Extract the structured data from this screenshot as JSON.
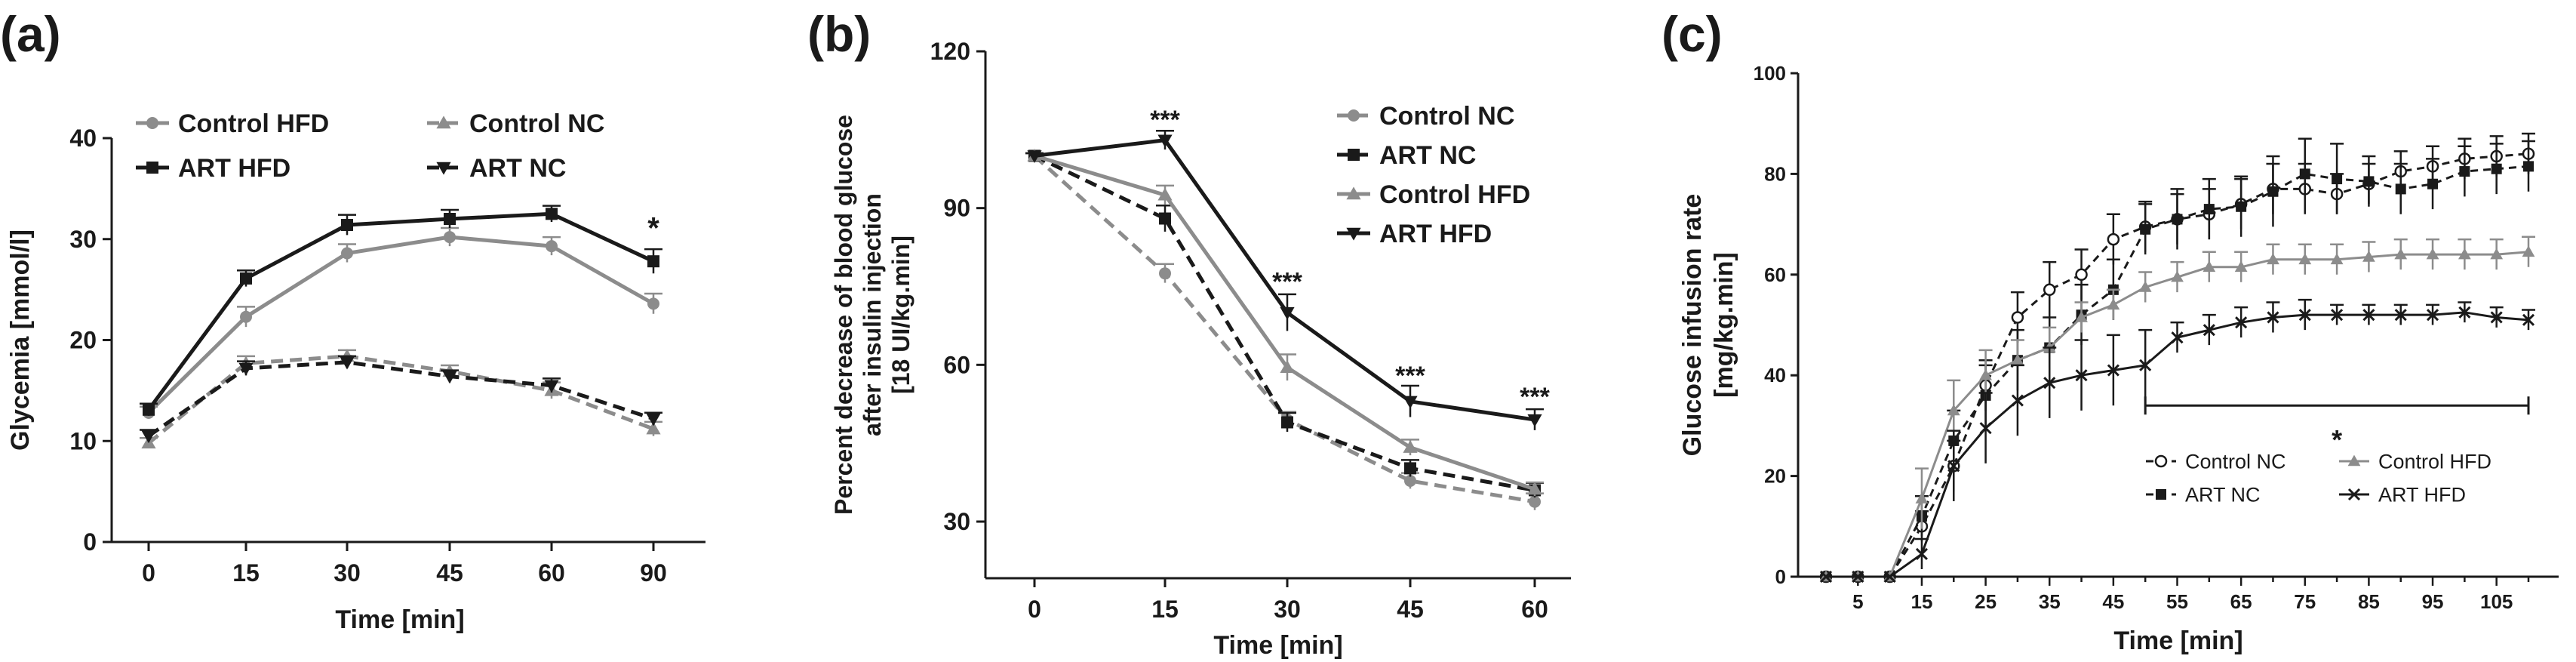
{
  "colors": {
    "black": "#1a1a1a",
    "gray": "#8c8c8c",
    "axis": "#1a1a1a"
  },
  "panels": [
    {
      "label": "(a)"
    },
    {
      "label": "(b)"
    },
    {
      "label": "(c)"
    }
  ],
  "chart_data": [
    {
      "panel": "(a)",
      "type": "line",
      "xlabel": "Time [min]",
      "ylabel": "Glycemia [mmol/l]",
      "x": [
        "0",
        "15",
        "30",
        "45",
        "60",
        "90"
      ],
      "yticks": [
        "0",
        "10",
        "20",
        "30",
        "40"
      ],
      "ylim": [
        0,
        40
      ],
      "legend": "top",
      "series": [
        {
          "name": "Control HFD",
          "color": "gray",
          "dash": false,
          "marker": "circle",
          "values": [
            12.8,
            22.3,
            28.6,
            30.2,
            29.3,
            23.6
          ],
          "err": [
            0.6,
            1.0,
            0.9,
            0.9,
            0.9,
            1.0
          ]
        },
        {
          "name": "ART HFD",
          "color": "black",
          "dash": false,
          "marker": "square",
          "values": [
            13.1,
            26.1,
            31.4,
            32.0,
            32.5,
            27.8
          ],
          "err": [
            0.6,
            0.8,
            1.0,
            0.9,
            0.8,
            1.2
          ]
        },
        {
          "name": "Control NC",
          "color": "gray",
          "dash": true,
          "marker": "triangle-up",
          "values": [
            9.8,
            17.7,
            18.4,
            16.9,
            15.0,
            11.2
          ],
          "err": [
            0.5,
            0.7,
            0.6,
            0.6,
            0.8,
            0.7
          ]
        },
        {
          "name": "ART NC",
          "color": "black",
          "dash": true,
          "marker": "triangle-down",
          "values": [
            10.5,
            17.2,
            17.8,
            16.4,
            15.5,
            12.2
          ],
          "err": [
            0.6,
            0.7,
            0.6,
            0.6,
            0.7,
            0.6
          ]
        }
      ],
      "annotations": [
        {
          "text": "*",
          "x": "90",
          "y": 31
        }
      ]
    },
    {
      "panel": "(b)",
      "type": "line",
      "xlabel": "Time [min]",
      "ylabel": "Percent decrease of blood glucose\nafter insulin injection\n[18 UI/kg.min]",
      "x": [
        "0",
        "15",
        "30",
        "45",
        "60"
      ],
      "yticks": [
        "30",
        "60",
        "90",
        "120"
      ],
      "ylim": [
        20,
        120
      ],
      "legend": "top-right",
      "series": [
        {
          "name": "Control NC",
          "color": "gray",
          "dash": true,
          "marker": "circle",
          "values": [
            100,
            77.5,
            49.5,
            37.8,
            33.8
          ],
          "err": [
            0.5,
            1.8,
            1.5,
            1.5,
            1.6
          ]
        },
        {
          "name": "ART NC",
          "color": "black",
          "dash": true,
          "marker": "square",
          "values": [
            100,
            88.0,
            49.0,
            40.2,
            36.0
          ],
          "err": [
            0.5,
            2.5,
            1.8,
            1.6,
            1.4
          ]
        },
        {
          "name": "Control HFD",
          "color": "gray",
          "dash": false,
          "marker": "triangle-up",
          "values": [
            100,
            92.5,
            59.5,
            44.2,
            36.2
          ],
          "err": [
            0.5,
            1.8,
            2.5,
            1.5,
            1.3
          ]
        },
        {
          "name": "ART HFD",
          "color": "black",
          "dash": false,
          "marker": "triangle-down",
          "values": [
            100,
            103.0,
            70.0,
            53.0,
            49.5
          ],
          "err": [
            0.5,
            1.8,
            3.5,
            3.0,
            2.0
          ]
        }
      ],
      "annotations": [
        {
          "text": "***",
          "x": "15",
          "y": 107
        },
        {
          "text": "***",
          "x": "30",
          "y": 76
        },
        {
          "text": "***",
          "x": "45",
          "y": 58
        },
        {
          "text": "***",
          "x": "60",
          "y": 54
        }
      ]
    },
    {
      "panel": "(c)",
      "type": "line",
      "xlabel": "Time [min]",
      "ylabel": "Glucose infusion rate\n[mg/kg.min]",
      "x": [
        0,
        5,
        10,
        15,
        20,
        25,
        30,
        35,
        40,
        45,
        50,
        55,
        60,
        65,
        70,
        75,
        80,
        85,
        90,
        95,
        100,
        105,
        110
      ],
      "xticks": [
        "5",
        "15",
        "25",
        "35",
        "45",
        "55",
        "65",
        "75",
        "85",
        "95",
        "105"
      ],
      "yticks": [
        "0",
        "20",
        "40",
        "60",
        "80",
        "100"
      ],
      "xlim": [
        -2,
        112
      ],
      "ylim": [
        0,
        100
      ],
      "legend": "bottom-right",
      "series": [
        {
          "name": "Control NC",
          "color": "black",
          "dash": true,
          "marker": "open-circle",
          "values": [
            0,
            0,
            0,
            10,
            22,
            38,
            51.5,
            57,
            60,
            67,
            69.5,
            71,
            72,
            74,
            77,
            77,
            76,
            78,
            80.5,
            81.5,
            83,
            83.5,
            84
          ],
          "err": [
            0,
            0,
            0,
            3,
            5,
            5,
            5,
            5.5,
            5,
            5,
            5,
            5,
            5,
            5,
            5,
            5,
            4,
            4,
            4,
            4,
            4,
            4,
            4
          ]
        },
        {
          "name": "ART NC",
          "color": "black",
          "dash": true,
          "marker": "square",
          "values": [
            0,
            0,
            0,
            12,
            27,
            36,
            43,
            45.5,
            52,
            57,
            69,
            71,
            73,
            73.5,
            76.5,
            80,
            79,
            78.5,
            77,
            78,
            80.5,
            81,
            81.5
          ],
          "err": [
            0,
            0,
            0,
            4,
            6,
            6,
            6,
            6,
            6,
            6,
            5,
            6,
            6,
            6,
            7,
            7,
            7,
            5,
            5,
            5,
            5,
            5,
            5
          ]
        },
        {
          "name": "Control HFD",
          "color": "gray",
          "dash": false,
          "marker": "triangle-up",
          "values": [
            0,
            0,
            0,
            15.5,
            33,
            40,
            43,
            45.5,
            51.5,
            54,
            57.5,
            59.5,
            61.5,
            61.5,
            63,
            63,
            63,
            63.5,
            64,
            64,
            64,
            64,
            64.5
          ],
          "err": [
            0,
            0,
            0,
            6,
            6,
            5,
            4,
            4,
            3,
            3,
            3,
            3,
            3,
            3,
            3,
            3,
            3,
            3,
            3,
            3,
            3,
            3,
            3
          ]
        },
        {
          "name": "ART HFD",
          "color": "black",
          "dash": false,
          "marker": "x",
          "values": [
            0,
            0,
            0,
            4.5,
            22,
            29.5,
            35,
            38.5,
            40,
            41,
            42,
            47.5,
            49,
            50.5,
            51.5,
            52,
            52,
            52,
            52,
            52,
            52.5,
            51.5,
            51
          ],
          "err": [
            0,
            0,
            0,
            3,
            7,
            7,
            7,
            7,
            7,
            7,
            7,
            3,
            3,
            3,
            3,
            3,
            2,
            2,
            2,
            2,
            2,
            2,
            2
          ]
        }
      ],
      "significance_bar": {
        "from": 50,
        "to": 110,
        "y": 34,
        "text": "*"
      }
    }
  ]
}
